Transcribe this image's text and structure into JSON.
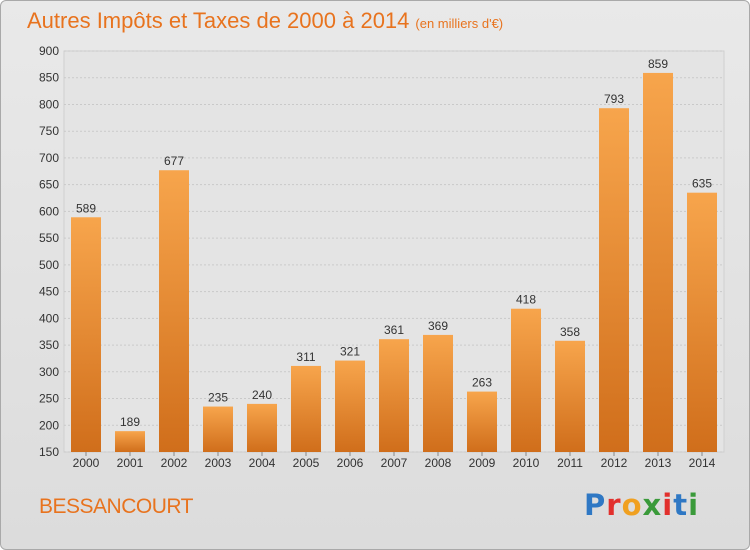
{
  "chart_data": {
    "type": "bar",
    "title": "Autres Impôts et Taxes de 2000 à 2014",
    "subtitle": "(en milliers d'€)",
    "categories": [
      "2000",
      "2001",
      "2002",
      "2003",
      "2004",
      "2005",
      "2006",
      "2007",
      "2008",
      "2009",
      "2010",
      "2011",
      "2012",
      "2013",
      "2014"
    ],
    "values": [
      589,
      189,
      677,
      235,
      240,
      311,
      321,
      361,
      369,
      263,
      418,
      358,
      793,
      859,
      635
    ],
    "ylim": [
      150,
      900
    ],
    "yticks": [
      150,
      200,
      250,
      300,
      350,
      400,
      450,
      500,
      550,
      600,
      650,
      700,
      750,
      800,
      850,
      900
    ],
    "grid": true,
    "bar_color_light": "#f7a54c",
    "bar_color_dark": "#d06e1b"
  },
  "footer": {
    "commune": "BESSANCOURT",
    "logo_letters": [
      {
        "ch": "P",
        "color": "#2f78c4"
      },
      {
        "ch": "r",
        "color": "#e2302d"
      },
      {
        "ch": "o",
        "color": "#f0a020"
      },
      {
        "ch": "x",
        "color": "#3a9a3a"
      },
      {
        "ch": "i",
        "color": "#e2302d"
      },
      {
        "ch": "t",
        "color": "#2f78c4"
      },
      {
        "ch": "i",
        "color": "#3a9a3a"
      }
    ]
  }
}
